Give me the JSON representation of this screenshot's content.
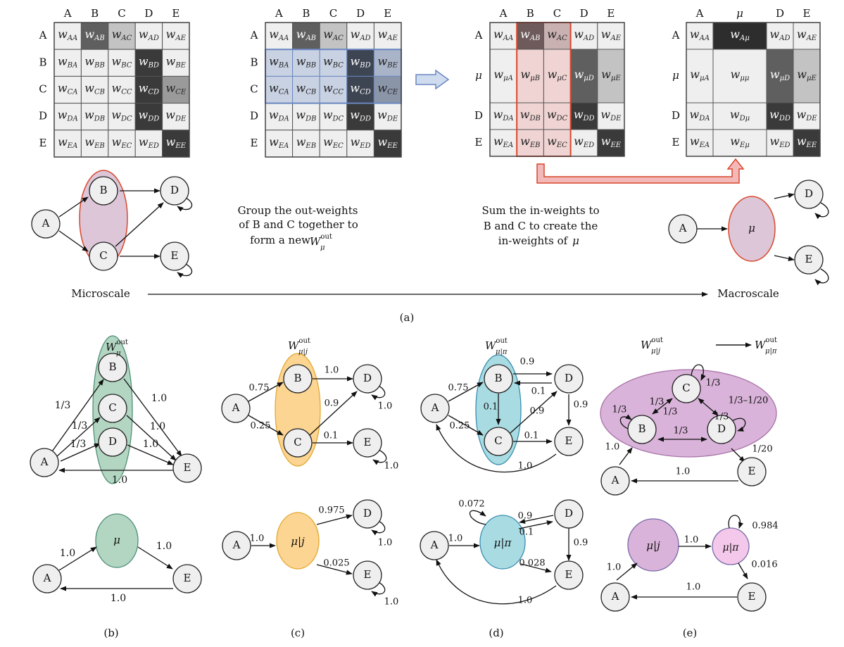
{
  "column_labels": [
    "A",
    "B",
    "C",
    "D",
    "E"
  ],
  "column_labels_macro": [
    "A",
    "μ",
    "D",
    "E"
  ],
  "row_labels": [
    "A",
    "B",
    "C",
    "D",
    "E"
  ],
  "row_labels_mid": [
    "A",
    "μ",
    "D",
    "E"
  ],
  "weight_letter": "w",
  "matrix1": [
    [
      "AA",
      "AB",
      "AC",
      "AD",
      "AE"
    ],
    [
      "BA",
      "BB",
      "BC",
      "BD",
      "BE"
    ],
    [
      "CA",
      "CB",
      "CC",
      "CD",
      "CE"
    ],
    [
      "DA",
      "DB",
      "DC",
      "DD",
      "DE"
    ],
    [
      "EA",
      "EB",
      "EC",
      "ED",
      "EE"
    ]
  ],
  "matrix3_rows": [
    [
      "AA",
      "AB",
      "AC",
      "AD",
      "AE"
    ],
    [
      "μA",
      "μB",
      "μC",
      "μD",
      "μE"
    ],
    [
      "DA",
      "DB",
      "DC",
      "DD",
      "DE"
    ],
    [
      "EA",
      "EB",
      "EC",
      "ED",
      "EE"
    ]
  ],
  "matrix4_rows": [
    [
      "AA",
      "Aμ",
      "AD",
      "AE"
    ],
    [
      "μA",
      "μμ",
      "μD",
      "μE"
    ],
    [
      "DA",
      "Dμ",
      "DD",
      "DE"
    ],
    [
      "EA",
      "Eμ",
      "ED",
      "EE"
    ]
  ],
  "colors": {
    "dark": "#3a3a3a",
    "mid": "#5f5f5f",
    "light_gray": "#c3c3c3",
    "cell": "#efefef",
    "blue_group": "#c9d2e3",
    "blue_border": "#6a86c0",
    "pink_group": "#f0d4d4",
    "red_border": "#d9472b",
    "green": "#b3d6c2",
    "orange": "#fcd592",
    "cyan": "#a9dbe3",
    "purple": "#d9b3d9",
    "lavender": "#dcc6d8",
    "pink_node": "#f3c8ea"
  },
  "caption_group": [
    "Group the out-weights",
    "of B and C together to",
    "form a new"
  ],
  "caption_sum": [
    "Sum the in-weights to",
    "B and C to create the",
    "in-weights of"
  ],
  "W": "W",
  "sup_out": "out",
  "sub_mu": "μ",
  "sub_mu_j": "μ|j",
  "sub_mu_pi": "μ|π",
  "mu": "μ",
  "mu_j": "μ|j",
  "mu_pi": "μ|π",
  "microscale": "Microscale",
  "macroscale": "Macroscale",
  "panel_labels": [
    "(a)",
    "(b)",
    "(c)",
    "(d)",
    "(e)"
  ],
  "nodes": [
    "A",
    "B",
    "C",
    "D",
    "E"
  ],
  "edge_labels_b": [
    "1/3",
    "1/3",
    "1/3",
    "1.0",
    "1.0",
    "1.0",
    "1.0"
  ],
  "edge_labels_b2": [
    "1.0",
    "1.0",
    "1.0"
  ],
  "edge_labels_c": [
    "0.75",
    "0.25",
    "1.0",
    "0.9",
    "0.1",
    "1.0",
    "1.0"
  ],
  "edge_labels_c2": [
    "1.0",
    "0.975",
    "0.025",
    "1.0",
    "1.0"
  ],
  "edge_labels_d": [
    "0.75",
    "0.25",
    "0.9",
    "0.1",
    "0.1",
    "0.9",
    "0.1",
    "0.9",
    "1.0"
  ],
  "edge_labels_d2": [
    "0.072",
    "1.0",
    "0.9",
    "0.1",
    "0.028",
    "0.9",
    "1.0"
  ],
  "edge_labels_e": [
    "1/3",
    "1/3",
    "1/3",
    "1/3",
    "1/3",
    "1/3",
    "1/3–1/20",
    "1.0",
    "1/20",
    "1.0"
  ],
  "edge_labels_e2": [
    "1.0",
    "1.0",
    "0.984",
    "0.016",
    "1.0"
  ]
}
